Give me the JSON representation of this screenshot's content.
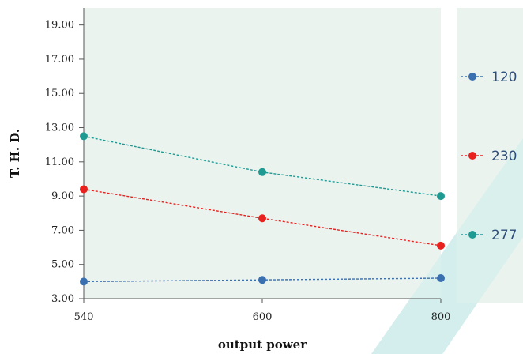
{
  "chart_data": {
    "type": "line",
    "title": "",
    "xlabel": "output power",
    "ylabel": "T. H. D.",
    "x": [
      540,
      600,
      800
    ],
    "x_tick_labels": [
      "540",
      "600",
      "800"
    ],
    "y_ticks": [
      3,
      5,
      7,
      9,
      11,
      13,
      15,
      17,
      19
    ],
    "y_tick_labels": [
      "3.00",
      "5.00",
      "7.00",
      "9.00",
      "11.00",
      "13.00",
      "15.00",
      "17.00",
      "19.00"
    ],
    "ylim": [
      3,
      20
    ],
    "x_scale": "categorical-evenly-spaced",
    "grid": false,
    "legend_position": "right",
    "series": [
      {
        "name": "120",
        "values": [
          4.0,
          4.1,
          4.2
        ],
        "color": "#3a6fb0",
        "marker": "circle",
        "line_style": "dashed"
      },
      {
        "name": "230",
        "values": [
          9.4,
          7.7,
          6.1
        ],
        "color": "#e8211f",
        "marker": "circle",
        "line_style": "dashed"
      },
      {
        "name": "277",
        "values": [
          12.5,
          10.4,
          9.0
        ],
        "color": "#1e9a93",
        "marker": "circle",
        "line_style": "dashed"
      }
    ],
    "colors": {
      "plot_background": "#eaf3ee",
      "legend_background": "#eaf3ee",
      "watermark": "#d3eeec"
    }
  }
}
